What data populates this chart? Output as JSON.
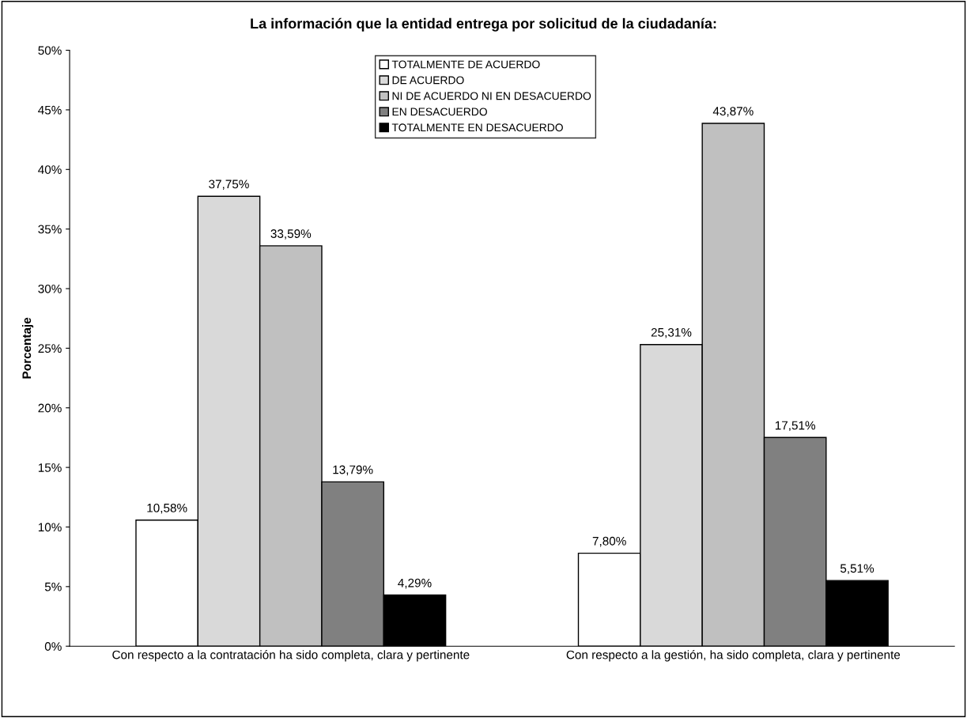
{
  "chart_data": {
    "type": "bar",
    "title": "La información que la entidad entrega por solicitud de la ciudadanía:",
    "ylabel": "Porcentaje",
    "categories": [
      "Con respecto a la contratación ha sido completa, clara y pertinente",
      "Con respecto a la gestión, ha sido completa, clara y pertinente"
    ],
    "series": [
      {
        "name": "TOTALMENTE DE ACUERDO",
        "color": "#ffffff",
        "values": [
          10.58,
          7.8
        ],
        "value_labels": [
          "10,58%",
          "7,80%"
        ]
      },
      {
        "name": "DE ACUERDO",
        "color": "#d9d9d9",
        "values": [
          37.75,
          25.31
        ],
        "value_labels": [
          "37,75%",
          "25,31%"
        ]
      },
      {
        "name": "NI DE ACUERDO NI EN DESACUERDO",
        "color": "#c0c0c0",
        "values": [
          33.59,
          43.87
        ],
        "value_labels": [
          "33,59%",
          "43,87%"
        ]
      },
      {
        "name": "EN DESACUERDO",
        "color": "#808080",
        "values": [
          13.79,
          17.51
        ],
        "value_labels": [
          "13,79%",
          "17,51%"
        ]
      },
      {
        "name": "TOTALMENTE EN DESACUERDO",
        "color": "#000000",
        "values": [
          4.29,
          5.51
        ],
        "value_labels": [
          "4,29%",
          "5,51%"
        ]
      }
    ],
    "ylim": [
      0,
      50
    ],
    "yticks": [
      {
        "value": 0,
        "label": "0%"
      },
      {
        "value": 5,
        "label": "5%"
      },
      {
        "value": 10,
        "label": "10%"
      },
      {
        "value": 15,
        "label": "15%"
      },
      {
        "value": 20,
        "label": "20%"
      },
      {
        "value": 25,
        "label": "25%"
      },
      {
        "value": 30,
        "label": "30%"
      },
      {
        "value": 35,
        "label": "35%"
      },
      {
        "value": 40,
        "label": "40%"
      },
      {
        "value": 45,
        "label": "45%"
      },
      {
        "value": 50,
        "label": "50%"
      }
    ],
    "grid": false,
    "legend": "top"
  }
}
